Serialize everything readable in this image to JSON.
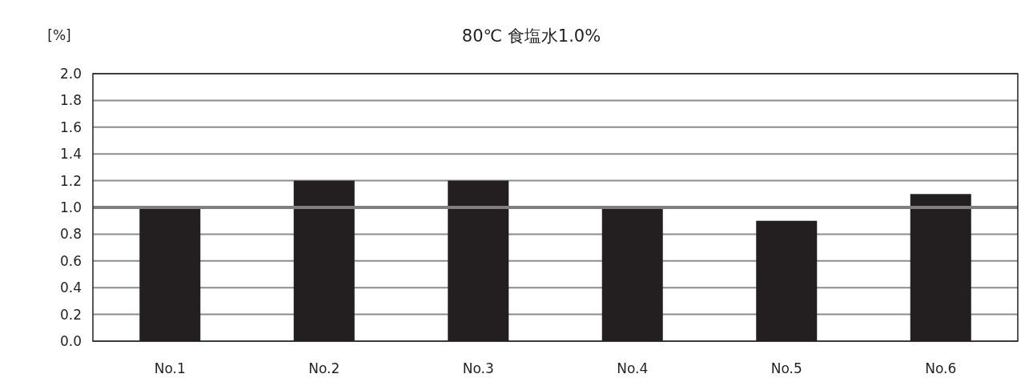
{
  "chart_data": {
    "type": "bar",
    "title": "80℃ 食塩水1.0%",
    "ylabel": "[%]",
    "categories": [
      "No.1",
      "No.2",
      "No.3",
      "No.4",
      "No.5",
      "No.6"
    ],
    "values": [
      1.0,
      1.2,
      1.2,
      1.0,
      0.9,
      1.1
    ],
    "color": "#231f20",
    "ylim": [
      0,
      2
    ],
    "yticks": [
      {
        "value": 0,
        "label": "0.0"
      },
      {
        "value": 0.2,
        "label": "0.2"
      },
      {
        "value": 0.4,
        "label": "0.4"
      },
      {
        "value": 0.6,
        "label": "0.6"
      },
      {
        "value": 0.8,
        "label": "0.8"
      },
      {
        "value": 1,
        "label": "1.0"
      },
      {
        "value": 1.2,
        "label": "1.2"
      },
      {
        "value": 1.4,
        "label": "1.4"
      },
      {
        "value": 1.6,
        "label": "1.6"
      },
      {
        "value": 1.8,
        "label": "1.8"
      },
      {
        "value": 2,
        "label": "2.0"
      }
    ],
    "grid": "y",
    "ref_lines": [
      {
        "axis": "y",
        "value": 1.0,
        "color": "#7f7f7f"
      }
    ]
  }
}
